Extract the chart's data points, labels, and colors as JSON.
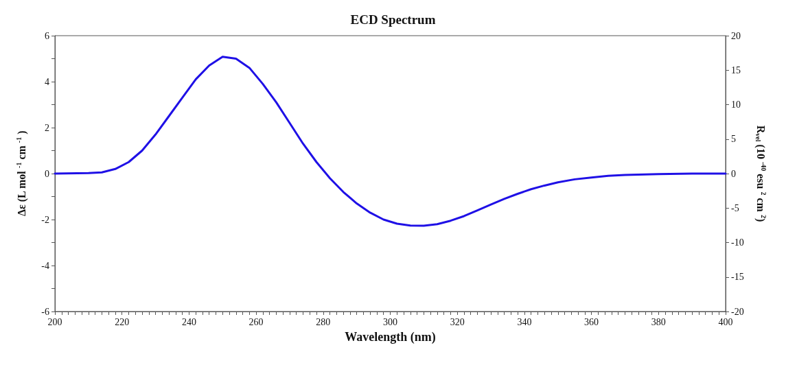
{
  "chart_data": {
    "type": "line",
    "title": "ECD Spectrum",
    "xlabel": "Wavelength (nm)",
    "ylabel": "Δε (L mol $^{-1}$ cm $^{-1}$ )",
    "y2label": "R$_{vel}$ (10 $^{-40}$ esu $^{2}$ cm $^{2}$)",
    "x": [
      200,
      210,
      214,
      218,
      222,
      226,
      230,
      234,
      238,
      242,
      246,
      250,
      254,
      258,
      262,
      266,
      270,
      274,
      278,
      282,
      286,
      290,
      294,
      298,
      302,
      306,
      310,
      314,
      318,
      322,
      326,
      330,
      334,
      338,
      342,
      346,
      350,
      355,
      360,
      365,
      370,
      380,
      390,
      400
    ],
    "series": [
      {
        "color": "#1f10e6",
        "values": [
          0,
          0.02,
          0.05,
          0.2,
          0.5,
          1.0,
          1.7,
          2.5,
          3.3,
          4.1,
          4.7,
          5.08,
          5.0,
          4.6,
          3.9,
          3.1,
          2.2,
          1.3,
          0.5,
          -0.2,
          -0.8,
          -1.3,
          -1.7,
          -2.0,
          -2.18,
          -2.26,
          -2.27,
          -2.2,
          -2.05,
          -1.85,
          -1.6,
          -1.35,
          -1.1,
          -0.88,
          -0.68,
          -0.52,
          -0.38,
          -0.25,
          -0.17,
          -0.1,
          -0.06,
          -0.02,
          0,
          0
        ]
      }
    ],
    "xlim": [
      200,
      400
    ],
    "xticks": [
      200,
      {
        "value": 202,
        "label": null
      },
      {
        "value": 204,
        "label": null
      },
      {
        "value": 206,
        "label": null
      },
      {
        "value": 208,
        "label": null
      },
      {
        "value": 210,
        "label": null
      },
      {
        "value": 212,
        "label": null
      },
      {
        "value": 214,
        "label": null
      },
      {
        "value": 216,
        "label": null
      },
      {
        "value": 218,
        "label": null
      },
      220,
      {
        "value": 222,
        "label": null
      },
      {
        "value": 224,
        "label": null
      },
      {
        "value": 226,
        "label": null
      },
      {
        "value": 228,
        "label": null
      },
      {
        "value": 230,
        "label": null
      },
      {
        "value": 232,
        "label": null
      },
      {
        "value": 234,
        "label": null
      },
      {
        "value": 236,
        "label": null
      },
      {
        "value": 238,
        "label": null
      },
      240,
      {
        "value": 242,
        "label": null
      },
      {
        "value": 244,
        "label": null
      },
      {
        "value": 246,
        "label": null
      },
      {
        "value": 248,
        "label": null
      },
      {
        "value": 250,
        "label": null
      },
      {
        "value": 252,
        "label": null
      },
      {
        "value": 254,
        "label": null
      },
      {
        "value": 256,
        "label": null
      },
      {
        "value": 258,
        "label": null
      },
      260,
      {
        "value": 262,
        "label": null
      },
      {
        "value": 264,
        "label": null
      },
      {
        "value": 266,
        "label": null
      },
      {
        "value": 268,
        "label": null
      },
      {
        "value": 270,
        "label": null
      },
      {
        "value": 272,
        "label": null
      },
      {
        "value": 274,
        "label": null
      },
      {
        "value": 276,
        "label": null
      },
      {
        "value": 278,
        "label": null
      },
      280,
      {
        "value": 282,
        "label": null
      },
      {
        "value": 284,
        "label": null
      },
      {
        "value": 286,
        "label": null
      },
      {
        "value": 288,
        "label": null
      },
      {
        "value": 290,
        "label": null
      },
      {
        "value": 292,
        "label": null
      },
      {
        "value": 294,
        "label": null
      },
      {
        "value": 296,
        "label": null
      },
      {
        "value": 298,
        "label": null
      },
      300,
      {
        "value": 302,
        "label": null
      },
      {
        "value": 304,
        "label": null
      },
      {
        "value": 306,
        "label": null
      },
      {
        "value": 308,
        "label": null
      },
      {
        "value": 310,
        "label": null
      },
      {
        "value": 312,
        "label": null
      },
      {
        "value": 314,
        "label": null
      },
      {
        "value": 316,
        "label": null
      },
      {
        "value": 318,
        "label": null
      },
      320,
      {
        "value": 322,
        "label": null
      },
      {
        "value": 324,
        "label": null
      },
      {
        "value": 326,
        "label": null
      },
      {
        "value": 328,
        "label": null
      },
      {
        "value": 330,
        "label": null
      },
      {
        "value": 332,
        "label": null
      },
      {
        "value": 334,
        "label": null
      },
      {
        "value": 336,
        "label": null
      },
      {
        "value": 338,
        "label": null
      },
      340,
      {
        "value": 342,
        "label": null
      },
      {
        "value": 344,
        "label": null
      },
      {
        "value": 346,
        "label": null
      },
      {
        "value": 348,
        "label": null
      },
      {
        "value": 350,
        "label": null
      },
      {
        "value": 352,
        "label": null
      },
      {
        "value": 354,
        "label": null
      },
      {
        "value": 356,
        "label": null
      },
      {
        "value": 358,
        "label": null
      },
      360,
      {
        "value": 362,
        "label": null
      },
      {
        "value": 364,
        "label": null
      },
      {
        "value": 366,
        "label": null
      },
      {
        "value": 368,
        "label": null
      },
      {
        "value": 370,
        "label": null
      },
      {
        "value": 372,
        "label": null
      },
      {
        "value": 374,
        "label": null
      },
      {
        "value": 376,
        "label": null
      },
      {
        "value": 378,
        "label": null
      },
      380,
      {
        "value": 382,
        "label": null
      },
      {
        "value": 384,
        "label": null
      },
      {
        "value": 386,
        "label": null
      },
      {
        "value": 388,
        "label": null
      },
      {
        "value": 390,
        "label": null
      },
      {
        "value": 392,
        "label": null
      },
      {
        "value": 394,
        "label": null
      },
      {
        "value": 396,
        "label": null
      },
      {
        "value": 398,
        "label": null
      },
      400
    ],
    "ylim": [
      -6,
      6
    ],
    "yticks": [
      -6,
      {
        "value": -5,
        "label": null
      },
      -4,
      {
        "value": -3,
        "label": null
      },
      -2,
      {
        "value": -1,
        "label": null
      },
      0,
      {
        "value": 1,
        "label": null
      },
      2,
      {
        "value": 3,
        "label": null
      },
      4,
      {
        "value": 5,
        "label": null
      },
      6
    ],
    "y2lim": [
      -20,
      20
    ],
    "y2ticks": [
      -20,
      -15,
      -10,
      -5,
      0,
      5,
      10,
      15,
      20
    ],
    "grid": false,
    "marker": "none",
    "line_style": "solid"
  }
}
